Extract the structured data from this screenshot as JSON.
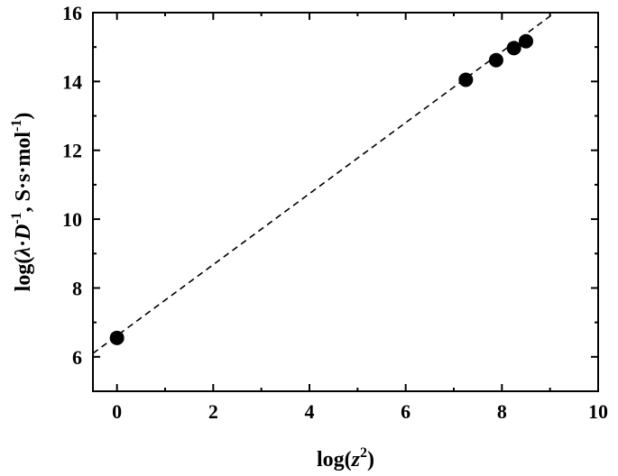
{
  "chart_data": {
    "type": "scatter",
    "xlabel": {
      "prefix": "log(",
      "var": "z",
      "sup": "2",
      "suffix": ")"
    },
    "ylabel": {
      "prefix": "log(",
      "lambda": "λ",
      "dot": "·",
      "D": "D",
      "sup1": "-1",
      "middle": ", S·s·mol",
      "sup2": "-1",
      "suffix": ")"
    },
    "xlim": [
      -0.5,
      10
    ],
    "ylim": [
      5,
      16
    ],
    "xticks": [
      0,
      2,
      4,
      6,
      8,
      10
    ],
    "yticks": [
      6,
      8,
      10,
      12,
      14,
      16
    ],
    "grid": false,
    "series": [
      {
        "points": [
          {
            "x": 0,
            "y": 6.55
          },
          {
            "x": 7.25,
            "y": 14.05
          },
          {
            "x": 7.88,
            "y": 14.62
          },
          {
            "x": 8.25,
            "y": 14.97
          },
          {
            "x": 8.5,
            "y": 15.17
          }
        ],
        "color": "#000000",
        "marker": "filled-circle"
      }
    ],
    "fit_line": {
      "style": "dashed",
      "color": "#000000",
      "x": [
        -0.5,
        9.1
      ],
      "y": [
        6.1,
        16.0
      ]
    }
  }
}
